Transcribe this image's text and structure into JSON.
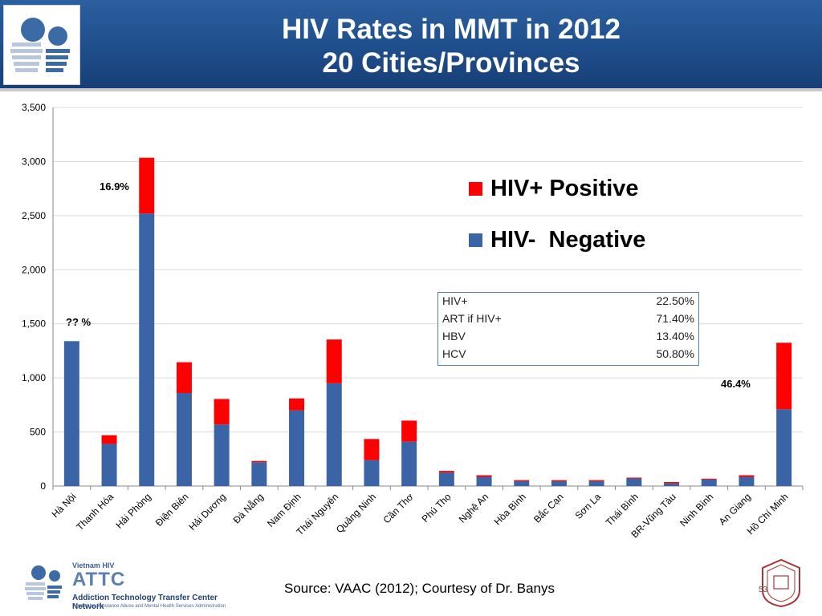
{
  "header": {
    "title_line1": "HIV Rates in MMT in 2012",
    "title_line2": "20 Cities/Provinces"
  },
  "colors": {
    "header_blue": "#1f4e8c",
    "negative": "#3a64a6",
    "positive": "#ff0000"
  },
  "chart_data": {
    "type": "bar",
    "stacked": true,
    "categories": [
      "Hà Nội",
      "Thanh Hóa",
      "Hải Phòng",
      "Điện Biên",
      "Hải Dương",
      "Đà Nẵng",
      "Nam Định",
      "Thái Nguyên",
      "Quảng Ninh",
      "Cần Thơ",
      "Phú Thọ",
      "Nghệ An",
      "Hòa Bình",
      "Bắc Cạn",
      "Sơn La",
      "Thái Bình",
      "BR-Vũng Tàu",
      "Ninh Bình",
      "An Giang",
      "Hồ Chí Minh"
    ],
    "series": [
      {
        "name": "HIV-  Negative",
        "color": "#3a64a6",
        "values": [
          1340,
          390,
          2520,
          860,
          570,
          220,
          700,
          950,
          240,
          410,
          125,
          85,
          45,
          45,
          45,
          70,
          25,
          60,
          85,
          710
        ]
      },
      {
        "name": "HIV+ Positive",
        "color": "#ff0000",
        "values": [
          0,
          80,
          515,
          285,
          235,
          12,
          110,
          405,
          195,
          195,
          15,
          15,
          10,
          10,
          10,
          8,
          12,
          8,
          15,
          615
        ]
      }
    ],
    "yticks": [
      "0",
      "500",
      "1,000",
      "1,500",
      "2,000",
      "2,500",
      "3,000",
      "3,500"
    ],
    "ylim": [
      0,
      3500
    ],
    "grid": true,
    "legend_position": "top-right",
    "annotations": [
      {
        "text": "?? %",
        "category": "Hà Nội"
      },
      {
        "text": "16.9%",
        "category": "Hải Phòng"
      },
      {
        "text": "46.4%",
        "category": "Hồ Chí Minh"
      }
    ]
  },
  "stats_table": [
    {
      "label": "HIV+",
      "value": "22.50%"
    },
    {
      "label": "ART if HIV+",
      "value": "71.40%"
    },
    {
      "label": "HBV",
      "value": "13.40%"
    },
    {
      "label": "HCV",
      "value": "50.80%"
    }
  ],
  "footer": {
    "source": "Source: VAAC (2012); Courtesy of Dr. Banys",
    "org_small": "Vietnam HIV",
    "org_big": "ATTC",
    "org_network": "Addiction Technology Transfer Center Network",
    "org_funding": "Funded by Substance Abuse and Mental Health Services Administration",
    "page_number": "53"
  }
}
